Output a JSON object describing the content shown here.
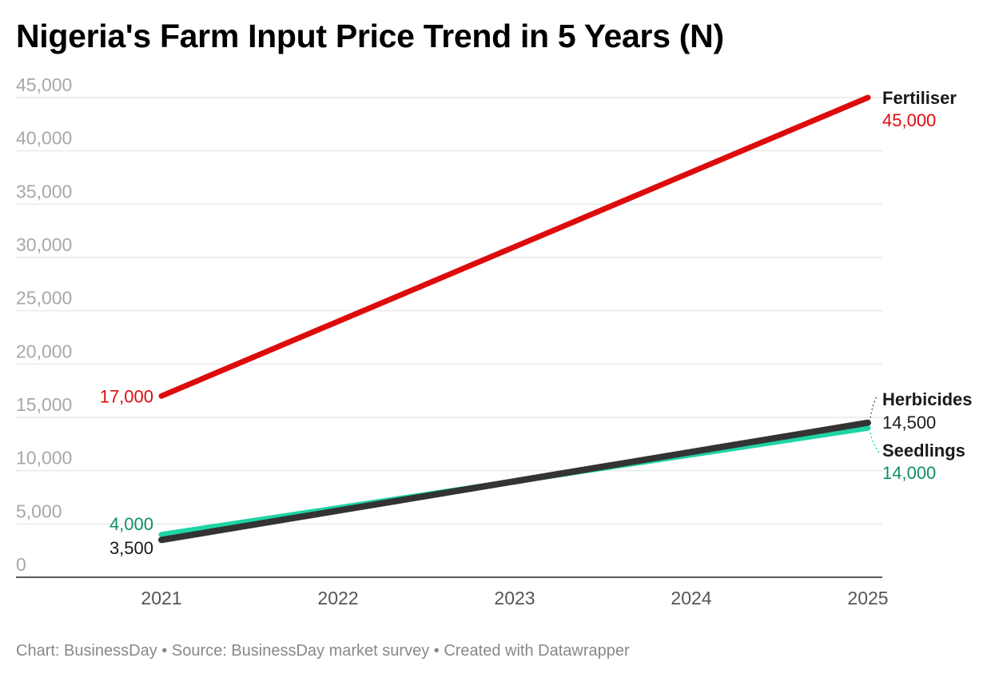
{
  "chart_data": {
    "type": "line",
    "title": "Nigeria's Farm Input Price Trend in 5 Years (N)",
    "xlabel": "",
    "ylabel": "",
    "x": [
      "2021",
      "2022",
      "2023",
      "2024",
      "2025"
    ],
    "ylim": [
      0,
      45000
    ],
    "yticks": [
      0,
      5000,
      10000,
      15000,
      20000,
      25000,
      30000,
      35000,
      40000,
      45000
    ],
    "ytick_labels": [
      "0",
      "5,000",
      "10,000",
      "15,000",
      "20,000",
      "25,000",
      "30,000",
      "35,000",
      "40,000",
      "45,000"
    ],
    "grid": true,
    "legend": "direct labels at line ends",
    "series": [
      {
        "key": "fertiliser",
        "name": "Fertiliser",
        "color": "#dd0b0b",
        "label_color": "#dd0b0b",
        "start_label": "17,000",
        "end_label": "45,000",
        "values": [
          17000,
          24000,
          31000,
          38000,
          45000
        ]
      },
      {
        "key": "seedlings",
        "name": "Seedlings",
        "color": "#1fd4a4",
        "label_color": "#0e8f66",
        "start_label": "4,000",
        "end_label": "14,000",
        "values": [
          4000,
          6500,
          9000,
          11500,
          14000
        ]
      },
      {
        "key": "herbicides",
        "name": "Herbicides",
        "color": "#333333",
        "label_color": "#1a1a1a",
        "start_label": "3,500",
        "end_label": "14,500",
        "values": [
          3500,
          6250,
          9000,
          11750,
          14500
        ]
      }
    ]
  },
  "footer": "Chart: BusinessDay • Source: BusinessDay market survey • Created with Datawrapper"
}
